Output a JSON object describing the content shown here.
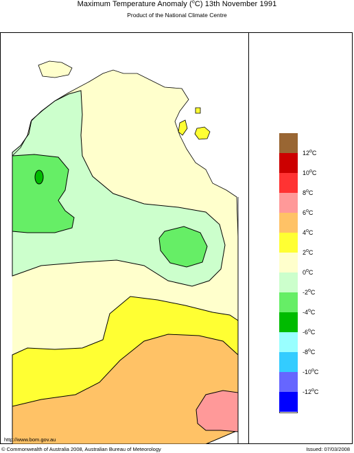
{
  "header": {
    "title_main": "Maximum Temperature Anomaly (",
    "title_unit_sup": "o",
    "title_unit_tail": "C)  13th November 1991",
    "subtitle": "Product of the National Climate Centre"
  },
  "legend": {
    "items": [
      {
        "label": "",
        "color": "#996633"
      },
      {
        "label": "12",
        "color": "#cc0000"
      },
      {
        "label": "10",
        "color": "#ff3333"
      },
      {
        "label": "8",
        "color": "#ff9999"
      },
      {
        "label": "6",
        "color": "#ffc266"
      },
      {
        "label": "4",
        "color": "#ffff33"
      },
      {
        "label": "2",
        "color": "#ffffcc"
      },
      {
        "label": "0",
        "color": "#ccffcc"
      },
      {
        "label": "-2",
        "color": "#66ee66"
      },
      {
        "label": "-4",
        "color": "#00bb00"
      },
      {
        "label": "-6",
        "color": "#99ffff"
      },
      {
        "label": "-8",
        "color": "#33ccff"
      },
      {
        "label": "-10",
        "color": "#6666ff"
      },
      {
        "label": "-12",
        "color": "#0000ff"
      }
    ],
    "unit_sup": "o",
    "unit_tail": "C"
  },
  "footer": {
    "url": "http://www.bom.gov.au",
    "copyright": "© Commonwealth of Australia 2008, Australian Bureau of Meteorology",
    "issued": "Issued: 07/03/2008"
  }
}
